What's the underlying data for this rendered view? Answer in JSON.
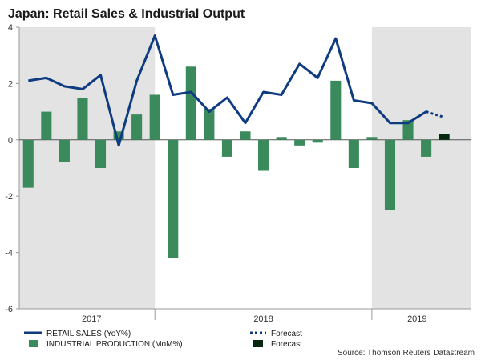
{
  "chart_data": {
    "type": "bar",
    "title": "Japan: Retail Sales & Industrial Output",
    "source": "Source: Thomson Reuters Datastream",
    "ylim": [
      -6,
      4
    ],
    "yticks": [
      -6,
      -4,
      -2,
      0,
      2,
      4
    ],
    "month_count": 25,
    "shaded_periods": [
      {
        "from_month": 0,
        "to_month": 7.5
      },
      {
        "from_month": 19.5,
        "to_month": 25
      }
    ],
    "year_labels": [
      {
        "label": "2017",
        "month": 4
      },
      {
        "label": "2018",
        "month": 13.5
      },
      {
        "label": "2019",
        "month": 22
      }
    ],
    "year_dividers": [
      7.5,
      19.5
    ],
    "series": [
      {
        "name": "RETAIL SALES (YoY%)",
        "kind": "line",
        "color": "#0f3c80",
        "values": [
          2.1,
          2.2,
          1.9,
          1.8,
          2.3,
          -0.2,
          2.1,
          3.7,
          1.6,
          1.7,
          1.0,
          1.5,
          0.6,
          1.7,
          1.6,
          2.7,
          2.2,
          3.6,
          1.4,
          1.3,
          0.6,
          0.6,
          1.0,
          null,
          null
        ],
        "forecast": {
          "name": "Forecast",
          "start_index": 22,
          "values": [
            1.0,
            0.8
          ]
        }
      },
      {
        "name": "INDUSTRIAL PRODUCTION (MoM%)",
        "kind": "bar",
        "color": "#3a8a5c",
        "values": [
          -1.7,
          1.0,
          -0.8,
          1.5,
          -1.0,
          0.3,
          0.9,
          1.6,
          -4.2,
          2.6,
          1.1,
          -0.6,
          0.3,
          -1.1,
          0.1,
          -0.2,
          -0.1,
          2.1,
          -1.0,
          0.1,
          -2.5,
          0.7,
          -0.6,
          null,
          null
        ],
        "forecast": {
          "name": "Forecast",
          "index": 23,
          "value": 0.2,
          "color": "#06280f"
        }
      }
    ],
    "legend": [
      {
        "label": "RETAIL SALES (YoY%)",
        "style": "line"
      },
      {
        "label": "Forecast",
        "style": "dotted-line"
      },
      {
        "label": "INDUSTRIAL PRODUCTION (MoM%)",
        "style": "bar"
      },
      {
        "label": "Forecast",
        "style": "dark-bar"
      }
    ],
    "legend_position": "bottom"
  }
}
